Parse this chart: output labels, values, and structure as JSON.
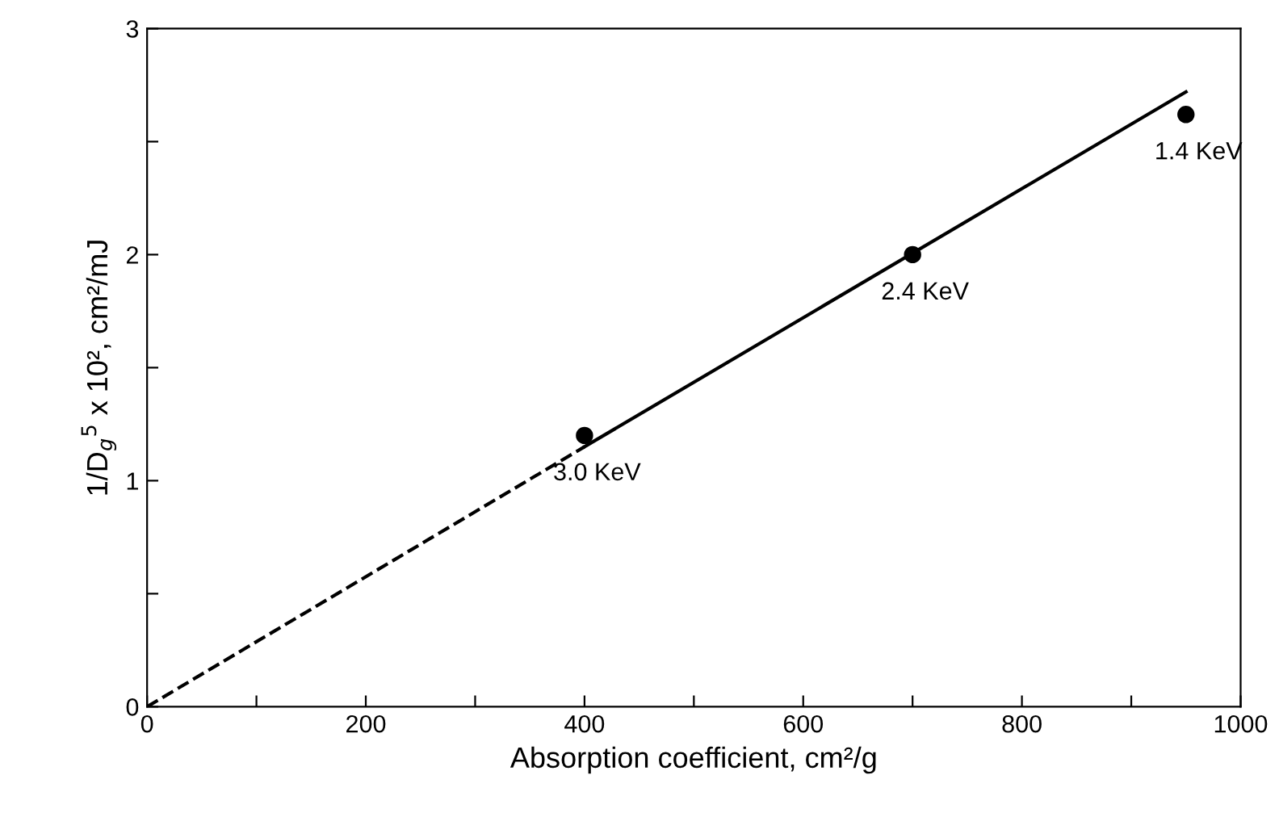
{
  "chart_data": {
    "type": "scatter",
    "xlabel": "Absorption coefficient, cm²/g",
    "ylabel": "1/D$_{g}$$^{5}$ x 10², cm²/mJ",
    "xlim": [
      0,
      1000
    ],
    "ylim": [
      0,
      3
    ],
    "xticks": [
      0,
      {
        "value": 100,
        "label": null
      },
      200,
      {
        "value": 300,
        "label": null
      },
      400,
      {
        "value": 500,
        "label": null
      },
      600,
      {
        "value": 700,
        "label": null
      },
      800,
      {
        "value": 900,
        "label": null
      },
      1000
    ],
    "yticks": [
      0,
      {
        "value": 0.5,
        "label": null
      },
      1,
      {
        "value": 1.5,
        "label": null
      },
      2,
      {
        "value": 2.5,
        "label": null
      },
      3
    ],
    "grid": false,
    "legend": false,
    "series": [
      {
        "type": "line",
        "color": "#000000",
        "x": [
          0,
          400
        ],
        "values": [
          0,
          1.15
        ],
        "line_style": "dashed",
        "marker": "none"
      },
      {
        "type": "line",
        "color": "#000000",
        "x": [
          400,
          950
        ],
        "values": [
          1.15,
          2.72
        ],
        "line_style": "solid",
        "marker": "none"
      },
      {
        "color": "#000000",
        "x": [
          400,
          700,
          950
        ],
        "values": [
          1.2,
          2.0,
          2.62
        ],
        "marker": "circle"
      }
    ],
    "annotations": [
      {
        "text": "3.0 KeV",
        "x": 400,
        "y": 1.2
      },
      {
        "text": "2.4 KeV",
        "x": 700,
        "y": 2.0
      },
      {
        "text": "1.4 KeV",
        "x": 950,
        "y": 2.62
      }
    ]
  }
}
